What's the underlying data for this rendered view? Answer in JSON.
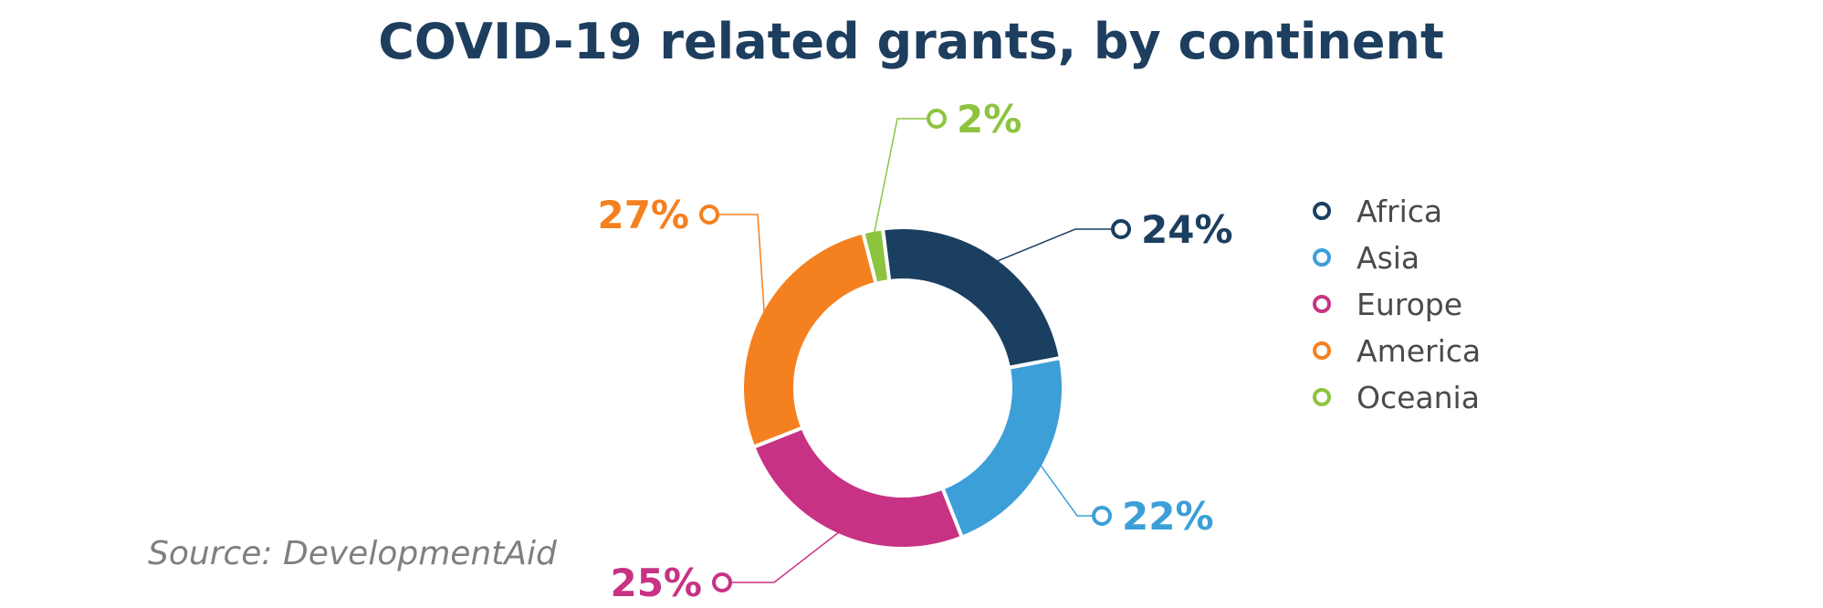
{
  "chart_data": {
    "type": "pie",
    "title": "COVID-19 related grants, by continent",
    "source": "Source: DevelopmentAid",
    "categories": [
      "Africa",
      "Asia",
      "Europe",
      "America",
      "Oceania"
    ],
    "values": [
      24,
      22,
      25,
      27,
      2
    ],
    "value_labels": [
      "24%",
      "22%",
      "25%",
      "27%",
      "2%"
    ],
    "colors": [
      "#1b3f60",
      "#3d9fd7",
      "#c83284",
      "#f58020",
      "#8cc43f"
    ],
    "donut": true,
    "legend_position": "right",
    "title_color": "#1d3e5e",
    "source_color": "#7f7f7f"
  }
}
